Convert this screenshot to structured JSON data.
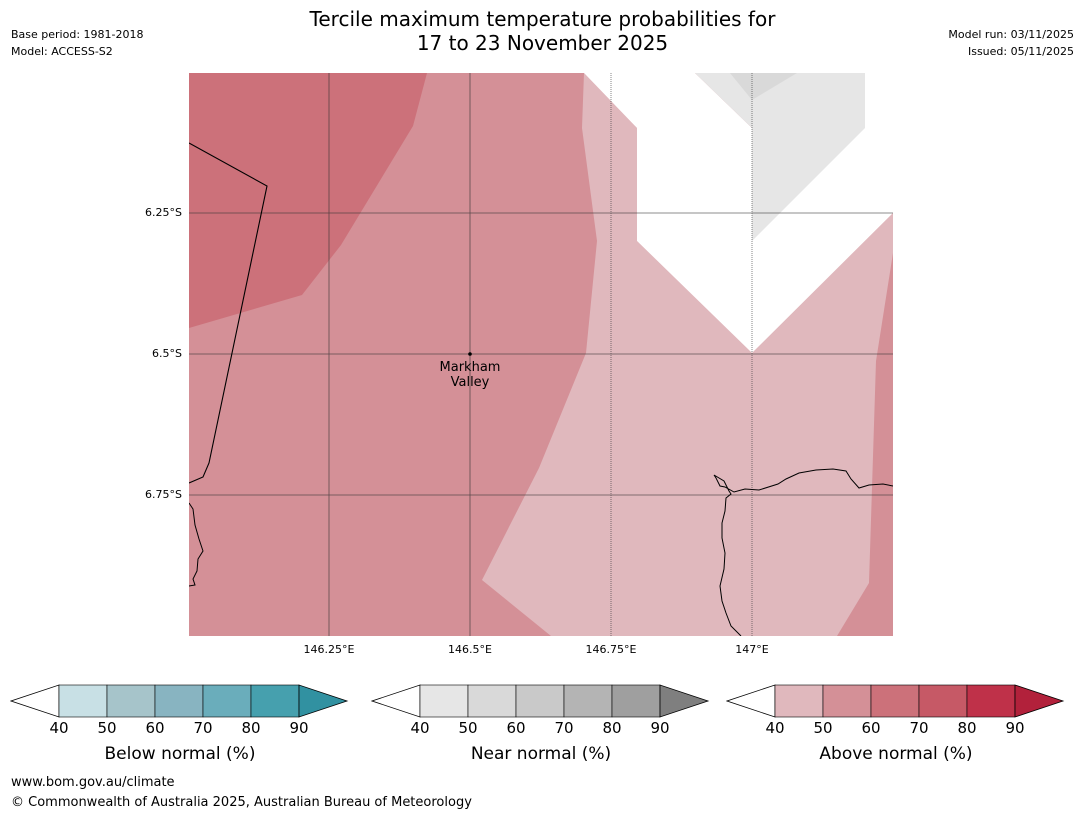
{
  "title": {
    "line1": "Tercile maximum temperature probabilities for",
    "line2": "17 to 23 November 2025"
  },
  "meta": {
    "base_period": "Base period: 1981-2018",
    "model": "Model: ACCESS-S2",
    "model_run": "Model run: 03/11/2025",
    "issued": "Issued: 05/11/2025"
  },
  "map": {
    "latitude_labels": [
      "6.25°S",
      "6.5°S",
      "6.75°S"
    ],
    "longitude_labels": [
      "146.25°E",
      "146.5°E",
      "146.75°E",
      "147°E"
    ],
    "place": {
      "name_line1": "Markham",
      "name_line2": "Valley"
    }
  },
  "colorbars": [
    {
      "name": "below",
      "title": "Below normal (%)",
      "ticks": [
        "40",
        "50",
        "60",
        "70",
        "80",
        "90"
      ],
      "colors": [
        "#c8e0e5",
        "#a6c4ca",
        "#88b4c1",
        "#6aadbb",
        "#46a0ae",
        "#3191a1"
      ]
    },
    {
      "name": "near",
      "title": "Near normal (%)",
      "ticks": [
        "40",
        "50",
        "60",
        "70",
        "80",
        "90"
      ],
      "colors": [
        "#e6e6e6",
        "#d9d9d9",
        "#c9c9c9",
        "#b4b4b4",
        "#9f9f9f",
        "#7f7f7f"
      ]
    },
    {
      "name": "above",
      "title": "Above normal (%)",
      "ticks": [
        "40",
        "50",
        "60",
        "70",
        "80",
        "90"
      ],
      "colors": [
        "#e0b8bd",
        "#d49097",
        "#cc717a",
        "#c65966",
        "#bf3149",
        "#b2213b"
      ]
    }
  ],
  "footer": {
    "url": "www.bom.gov.au/climate",
    "copyright": "© Commonwealth of Australia 2025, Australian Bureau of Meteorology"
  }
}
